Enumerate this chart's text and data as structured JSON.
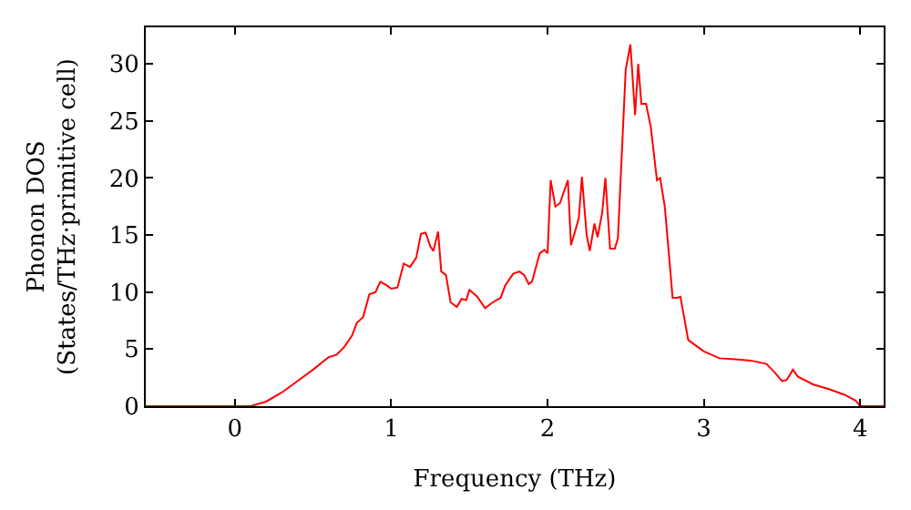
{
  "chart_data": {
    "type": "line",
    "xlabel": "Frequency (THz)",
    "ylabel": "Phonon DOS\n(States/THz·primitive cell)",
    "xlim": [
      -0.57,
      4.15
    ],
    "ylim": [
      0,
      33.2
    ],
    "xticks": [
      0,
      1,
      2,
      3,
      4
    ],
    "yticks": [
      0,
      5,
      10,
      15,
      20,
      25,
      30
    ],
    "marker": "none",
    "line_style": "solid",
    "series": [
      {
        "color": "#ff0000",
        "x": [
          -0.57,
          0.1,
          0.2,
          0.3,
          0.4,
          0.5,
          0.6,
          0.65,
          0.7,
          0.75,
          0.78,
          0.82,
          0.86,
          0.9,
          0.93,
          0.97,
          1.0,
          1.04,
          1.08,
          1.12,
          1.16,
          1.19,
          1.22,
          1.25,
          1.27,
          1.3,
          1.32,
          1.35,
          1.38,
          1.42,
          1.45,
          1.48,
          1.5,
          1.55,
          1.6,
          1.65,
          1.7,
          1.73,
          1.78,
          1.82,
          1.85,
          1.88,
          1.9,
          1.95,
          1.98,
          2.0,
          2.02,
          2.05,
          2.08,
          2.13,
          2.15,
          2.18,
          2.2,
          2.22,
          2.25,
          2.27,
          2.3,
          2.32,
          2.35,
          2.37,
          2.4,
          2.43,
          2.45,
          2.5,
          2.53,
          2.56,
          2.58,
          2.6,
          2.63,
          2.66,
          2.7,
          2.72,
          2.75,
          2.8,
          2.83,
          2.85,
          2.9,
          2.95,
          3.0,
          3.05,
          3.1,
          3.2,
          3.3,
          3.4,
          3.45,
          3.5,
          3.53,
          3.57,
          3.6,
          3.7,
          3.8,
          3.9,
          3.97,
          4.0,
          4.15
        ],
        "values": [
          0,
          0,
          0.4,
          1.2,
          2.2,
          3.2,
          4.3,
          4.5,
          5.2,
          6.2,
          7.3,
          7.8,
          9.8,
          10.0,
          10.9,
          10.6,
          10.3,
          10.4,
          12.5,
          12.2,
          13,
          15.1,
          15.2,
          14,
          13.6,
          15.3,
          11.8,
          11.5,
          9.1,
          8.7,
          9.4,
          9.3,
          10.2,
          9.6,
          8.6,
          9.1,
          9.5,
          10.6,
          11.6,
          11.8,
          11.5,
          10.7,
          10.9,
          13.4,
          13.7,
          13.4,
          19.8,
          17.5,
          17.8,
          19.8,
          14.1,
          15.5,
          16.5,
          20.1,
          15,
          13.6,
          16,
          14.8,
          17,
          20,
          13.8,
          13.8,
          14.7,
          29.5,
          31.7,
          25.5,
          30,
          26.5,
          26.5,
          24.5,
          19.8,
          20,
          17.5,
          9.5,
          9.5,
          9.6,
          5.8,
          5.3,
          4.8,
          4.5,
          4.2,
          4.1,
          4.0,
          3.7,
          3.0,
          2.2,
          2.3,
          3.2,
          2.6,
          1.9,
          1.5,
          1.0,
          0.5,
          0,
          0
        ]
      }
    ]
  }
}
